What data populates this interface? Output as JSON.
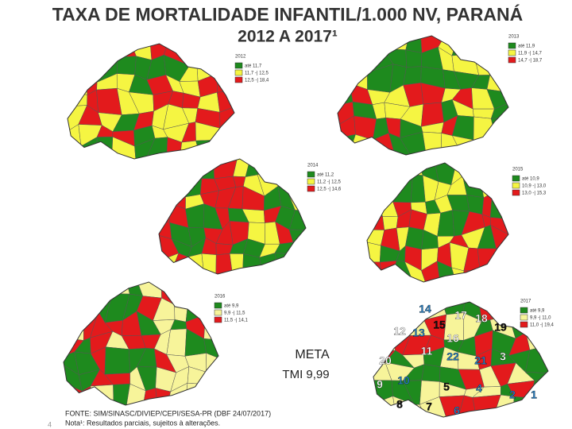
{
  "header": {
    "title": "TAXA DE MORTALIDADE INFANTIL/1.000 NV, PARANÁ",
    "subtitle": "2012 A 2017¹"
  },
  "maps": [
    {
      "year": "2012",
      "legend": [
        {
          "label": "até 11,7",
          "color": "#1e8a1e"
        },
        {
          "label": "11,7 -| 12,5",
          "color": "#f5f542"
        },
        {
          "label": "12,5 -| 18,4",
          "color": "#e31a1c"
        }
      ]
    },
    {
      "year": "2013",
      "legend": [
        {
          "label": "até 11,9",
          "color": "#1e8a1e"
        },
        {
          "label": "11,9 -| 14,7",
          "color": "#f5f542"
        },
        {
          "label": "14,7 -| 18,7",
          "color": "#e31a1c"
        }
      ]
    },
    {
      "year": "2014",
      "legend": [
        {
          "label": "até 11,2",
          "color": "#1e8a1e"
        },
        {
          "label": "11,2 -| 12,5",
          "color": "#f5f542"
        },
        {
          "label": "12,5 -| 14,6",
          "color": "#e31a1c"
        }
      ]
    },
    {
      "year": "2015",
      "legend": [
        {
          "label": "até 10,9",
          "color": "#1e8a1e"
        },
        {
          "label": "10,9 -| 13,0",
          "color": "#f5f542"
        },
        {
          "label": "13,0 -| 15,3",
          "color": "#e31a1c"
        }
      ]
    },
    {
      "year": "2016",
      "legend": [
        {
          "label": "até 9,9",
          "color": "#1e8a1e"
        },
        {
          "label": "9,9 -| 11,5",
          "color": "#f7f49a"
        },
        {
          "label": "11,5 -| 14,1",
          "color": "#e31a1c"
        }
      ]
    },
    {
      "year": "2017",
      "legend": [
        {
          "label": "até 9,9",
          "color": "#1e8a1e"
        },
        {
          "label": "9,9 -| 11,0",
          "color": "#f7f49a"
        },
        {
          "label": "11,0 -| 19,4",
          "color": "#e31a1c"
        }
      ]
    }
  ],
  "regions": [
    {
      "label": "14",
      "color": "#2a7fc1"
    },
    {
      "label": "17",
      "color": "#ffffff"
    },
    {
      "label": "18",
      "color": "#ffffff"
    },
    {
      "label": "15",
      "color": "#111111"
    },
    {
      "label": "19",
      "color": "#111111"
    },
    {
      "label": "12",
      "color": "#ffffff"
    },
    {
      "label": "13",
      "color": "#2a7fc1"
    },
    {
      "label": "16",
      "color": "#ffffff"
    },
    {
      "label": "11",
      "color": "#ffffff"
    },
    {
      "label": "22",
      "color": "#2a7fc1"
    },
    {
      "label": "21",
      "color": "#2a7fc1"
    },
    {
      "label": "3",
      "color": "#ffffff"
    },
    {
      "label": "20",
      "color": "#ffffff"
    },
    {
      "label": "10",
      "color": "#2a7fc1"
    },
    {
      "label": "5",
      "color": "#111111"
    },
    {
      "label": "9",
      "color": "#ffffff"
    },
    {
      "label": "4",
      "color": "#2a7fc1"
    },
    {
      "label": "2",
      "color": "#2a7fc1"
    },
    {
      "label": "1",
      "color": "#2a7fc1"
    },
    {
      "label": "8",
      "color": "#111111"
    },
    {
      "label": "7",
      "color": "#111111"
    },
    {
      "label": "6",
      "color": "#2a7fc1"
    }
  ],
  "goal": {
    "label": "META",
    "value": "TMI 9,99"
  },
  "footer": {
    "source": "FONTE: SIM/SINASC/DIVIEP/CEPI/SESA-PR (DBF 24/07/2017)",
    "note": "Nota¹: Resultados parciais, sujeitos à alterações.",
    "page": "4"
  }
}
